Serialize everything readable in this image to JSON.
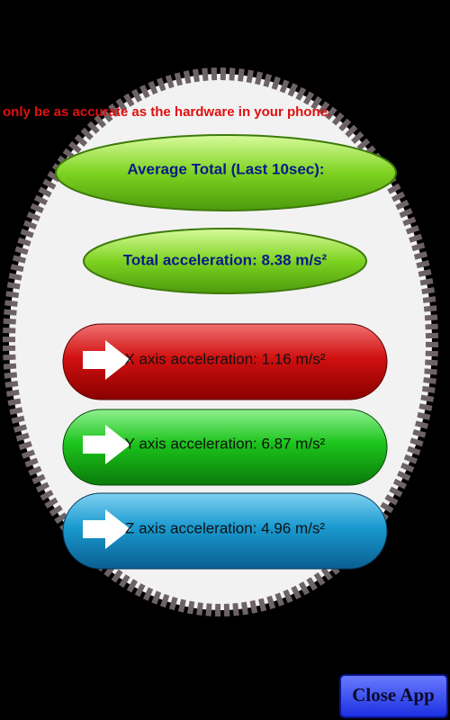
{
  "marquee": "only be as accurate as the hardware in your phone.",
  "average_button": "Average Total (Last 10sec):",
  "total_button": "Total acceleration: 8.38 m/s²",
  "axis_buttons": [
    "X axis acceleration: 1.16 m/s²",
    "Y axis acceleration: 6.87 m/s²",
    "Z axis acceleration: 4.96 m/s²"
  ],
  "close_button": "Close App"
}
